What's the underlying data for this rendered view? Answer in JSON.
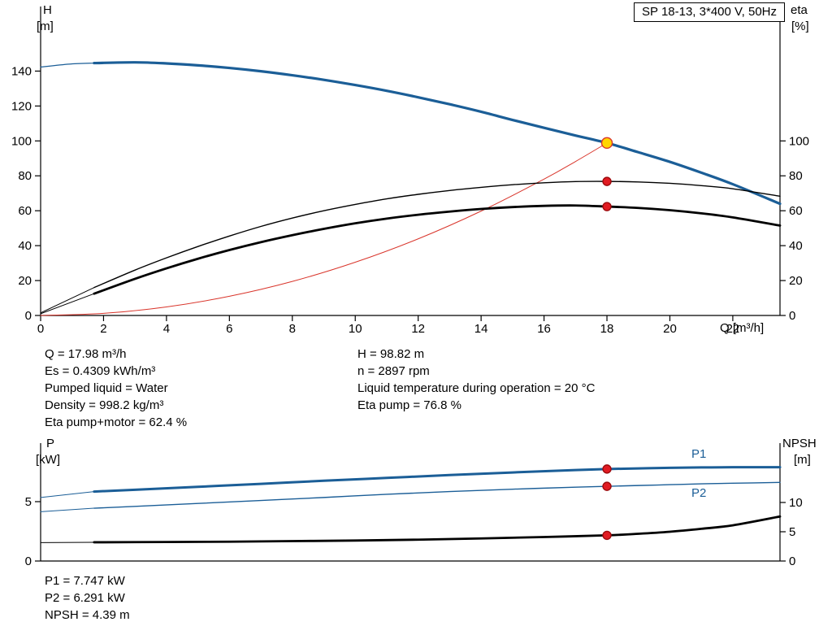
{
  "title_box": "SP 18-13, 3*400 V, 50Hz",
  "axis_titles": {
    "h": "H",
    "h_unit": "[m]",
    "eta": "eta",
    "eta_unit": "[%]",
    "q": "Q [m³/h]",
    "p": "P",
    "p_unit": "[kW]",
    "npsh": "NPSH",
    "npsh_unit": "[m]"
  },
  "curve_labels": {
    "p1": "P1",
    "p2": "P2"
  },
  "info_block": {
    "left": [
      "Q = 17.98 m³/h",
      "Es = 0.4309 kWh/m³",
      "Pumped liquid = Water",
      "Density = 998.2 kg/m³",
      "Eta pump+motor = 62.4 %"
    ],
    "right": [
      "H = 98.82 m",
      "n = 2897 rpm",
      "Liquid temperature during operation = 20 °C",
      "Eta pump = 76.8 %"
    ]
  },
  "results_block": [
    "P1 = 7.747 kW",
    "P2 = 6.291 kW",
    "NPSH = 4.39 m"
  ],
  "colors": {
    "curve_blue": "#1b5e97",
    "system_red": "#d9352b",
    "marker_red": "#e11b22",
    "duty_yellow": "#ffd500",
    "axis_black": "#000000"
  },
  "chart_data": [
    {
      "type": "line",
      "name": "head-and-efficiency-chart",
      "title": "SP 18-13, 3*400 V, 50Hz",
      "x": {
        "label": "Q [m³/h]",
        "min": 0,
        "max": 23.5,
        "ticks": [
          0,
          2,
          4,
          6,
          8,
          10,
          12,
          14,
          16,
          18,
          20,
          22
        ]
      },
      "axes": {
        "left": {
          "label": "H [m]",
          "min": 0,
          "max": 177,
          "ticks": [
            0,
            20,
            40,
            60,
            80,
            100,
            120,
            140
          ]
        },
        "right": {
          "label": "eta [%]",
          "min": 0,
          "max": 177,
          "ticks": [
            0,
            20,
            40,
            60,
            80,
            100
          ]
        }
      },
      "series": [
        {
          "name": "system-curve",
          "axis": "left",
          "color": "#d9352b",
          "width": 1,
          "points": [
            [
              0,
              0
            ],
            [
              2,
              1.2
            ],
            [
              4,
              4.9
            ],
            [
              6,
              11
            ],
            [
              8,
              19.5
            ],
            [
              10,
              30.5
            ],
            [
              12,
              43.9
            ],
            [
              14,
              59.8
            ],
            [
              16,
              78.1
            ],
            [
              17,
              88.2
            ],
            [
              18,
              98.82
            ]
          ]
        },
        {
          "name": "head-curve-lead",
          "axis": "left",
          "color": "#1b5e97",
          "width": 1.2,
          "points": [
            [
              0,
              142.3
            ],
            [
              0.9,
              144
            ],
            [
              1.7,
              144.6
            ]
          ]
        },
        {
          "name": "head-curve",
          "axis": "left",
          "color": "#1b5e97",
          "width": 3.2,
          "points": [
            [
              1.7,
              144.6
            ],
            [
              3,
              145
            ],
            [
              4,
              144.4
            ],
            [
              5,
              143.3
            ],
            [
              6,
              141.8
            ],
            [
              7,
              139.9
            ],
            [
              8,
              137.6
            ],
            [
              9,
              135
            ],
            [
              10,
              132
            ],
            [
              11,
              128.7
            ],
            [
              12,
              125
            ],
            [
              13,
              121
            ],
            [
              14,
              116.7
            ],
            [
              15,
              112
            ],
            [
              16,
              107.5
            ],
            [
              17,
              103.1
            ],
            [
              18,
              98.82
            ],
            [
              19,
              93.5
            ],
            [
              20,
              88
            ],
            [
              21,
              81.8
            ],
            [
              22,
              75.2
            ],
            [
              23.5,
              64
            ]
          ]
        },
        {
          "name": "eta-pump-lead",
          "axis": "left",
          "color": "#000000",
          "width": 1,
          "points": [
            [
              0,
              1.5
            ],
            [
              1.7,
              16
            ]
          ]
        },
        {
          "name": "eta-pump-curve",
          "axis": "left",
          "color": "#000000",
          "width": 1.4,
          "points": [
            [
              1.7,
              16
            ],
            [
              3,
              26
            ],
            [
              4,
              33
            ],
            [
              5,
              39.5
            ],
            [
              6,
              45.5
            ],
            [
              7,
              51
            ],
            [
              8,
              55.8
            ],
            [
              9,
              60
            ],
            [
              10,
              63.6
            ],
            [
              11,
              66.8
            ],
            [
              12,
              69.4
            ],
            [
              13,
              71.6
            ],
            [
              14,
              73.4
            ],
            [
              15,
              74.9
            ],
            [
              16,
              76
            ],
            [
              17,
              76.7
            ],
            [
              18,
              76.8
            ],
            [
              19,
              76.5
            ],
            [
              20,
              75.7
            ],
            [
              21,
              74.4
            ],
            [
              22,
              72.6
            ],
            [
              23.5,
              68.3
            ]
          ]
        },
        {
          "name": "eta-pump-motor-lead",
          "axis": "left",
          "color": "#000000",
          "width": 1,
          "points": [
            [
              0,
              1
            ],
            [
              1.7,
              12.5
            ]
          ]
        },
        {
          "name": "eta-pump-motor-curve",
          "axis": "left",
          "color": "#000000",
          "width": 2.8,
          "points": [
            [
              1.7,
              12.5
            ],
            [
              3,
              21
            ],
            [
              4,
              27
            ],
            [
              5,
              32.5
            ],
            [
              6,
              37.5
            ],
            [
              7,
              42
            ],
            [
              8,
              46
            ],
            [
              9,
              49.6
            ],
            [
              10,
              52.8
            ],
            [
              11,
              55.5
            ],
            [
              12,
              57.7
            ],
            [
              13,
              59.5
            ],
            [
              14,
              61
            ],
            [
              15,
              62.1
            ],
            [
              16,
              62.8
            ],
            [
              17,
              63
            ],
            [
              18,
              62.4
            ],
            [
              19,
              61.6
            ],
            [
              20,
              60.3
            ],
            [
              21,
              58.5
            ],
            [
              22,
              56.2
            ],
            [
              23.5,
              51.5
            ]
          ]
        }
      ],
      "markers": [
        {
          "name": "duty-point",
          "x": 18,
          "y": 98.82,
          "axis": "left",
          "r": 6.5,
          "fill": "#ffd500",
          "stroke": "#d9352b"
        },
        {
          "name": "eta-pump-point",
          "x": 18,
          "y": 76.8,
          "axis": "left",
          "r": 5,
          "fill": "#e11b22",
          "stroke": "#9e0b0e"
        },
        {
          "name": "eta-pump-motor-point",
          "x": 18,
          "y": 62.4,
          "axis": "left",
          "r": 5,
          "fill": "#e11b22",
          "stroke": "#9e0b0e"
        }
      ]
    },
    {
      "type": "line",
      "name": "power-and-npsh-chart",
      "x": {
        "label": "",
        "min": 0,
        "max": 23.5,
        "ticks": []
      },
      "axes": {
        "left": {
          "label": "P [kW]",
          "min": 0,
          "max": 9.93,
          "ticks": [
            0,
            5
          ]
        },
        "right": {
          "label": "NPSH [m]",
          "min": 0,
          "max": 20.14,
          "ticks": [
            0,
            5,
            10
          ]
        }
      },
      "series": [
        {
          "name": "p1-lead",
          "axis": "left",
          "color": "#1b5e97",
          "width": 1,
          "points": [
            [
              0,
              5.35
            ],
            [
              1.7,
              5.85
            ]
          ]
        },
        {
          "name": "p1-curve",
          "axis": "left",
          "color": "#1b5e97",
          "width": 3,
          "points": [
            [
              1.7,
              5.85
            ],
            [
              3,
              6.0
            ],
            [
              5,
              6.25
            ],
            [
              7,
              6.5
            ],
            [
              9,
              6.76
            ],
            [
              11,
              7.0
            ],
            [
              13,
              7.24
            ],
            [
              15,
              7.46
            ],
            [
              17,
              7.66
            ],
            [
              18,
              7.747
            ],
            [
              19,
              7.8
            ],
            [
              20,
              7.85
            ],
            [
              21,
              7.88
            ],
            [
              22,
              7.9
            ],
            [
              23.5,
              7.9
            ]
          ]
        },
        {
          "name": "p2-lead",
          "axis": "left",
          "color": "#1b5e97",
          "width": 1,
          "points": [
            [
              0,
              4.15
            ],
            [
              1.7,
              4.45
            ]
          ]
        },
        {
          "name": "p2-curve",
          "axis": "left",
          "color": "#1b5e97",
          "width": 1.4,
          "points": [
            [
              1.7,
              4.45
            ],
            [
              3,
              4.6
            ],
            [
              5,
              4.85
            ],
            [
              7,
              5.1
            ],
            [
              9,
              5.35
            ],
            [
              11,
              5.62
            ],
            [
              13,
              5.85
            ],
            [
              15,
              6.05
            ],
            [
              17,
              6.22
            ],
            [
              18,
              6.291
            ],
            [
              19,
              6.36
            ],
            [
              20,
              6.43
            ],
            [
              21,
              6.5
            ],
            [
              22,
              6.55
            ],
            [
              23.5,
              6.62
            ]
          ]
        },
        {
          "name": "npsh-lead",
          "axis": "right",
          "color": "#000000",
          "width": 1,
          "points": [
            [
              0,
              3.15
            ],
            [
              1.7,
              3.2
            ]
          ]
        },
        {
          "name": "npsh-curve",
          "axis": "right",
          "color": "#000000",
          "width": 2.8,
          "points": [
            [
              1.7,
              3.2
            ],
            [
              4,
              3.25
            ],
            [
              6,
              3.3
            ],
            [
              8,
              3.4
            ],
            [
              10,
              3.5
            ],
            [
              12,
              3.65
            ],
            [
              14,
              3.85
            ],
            [
              16,
              4.1
            ],
            [
              18,
              4.39
            ],
            [
              19,
              4.65
            ],
            [
              20,
              5.0
            ],
            [
              21,
              5.5
            ],
            [
              22,
              6.1
            ],
            [
              23.5,
              7.6
            ]
          ]
        }
      ],
      "markers": [
        {
          "name": "p1-point",
          "x": 18,
          "y": 7.747,
          "axis": "left",
          "r": 5,
          "fill": "#e11b22",
          "stroke": "#9e0b0e"
        },
        {
          "name": "p2-point",
          "x": 18,
          "y": 6.291,
          "axis": "left",
          "r": 5,
          "fill": "#e11b22",
          "stroke": "#9e0b0e"
        },
        {
          "name": "npsh-point",
          "x": 18,
          "y": 4.39,
          "axis": "right",
          "r": 5,
          "fill": "#e11b22",
          "stroke": "#9e0b0e"
        }
      ]
    }
  ]
}
